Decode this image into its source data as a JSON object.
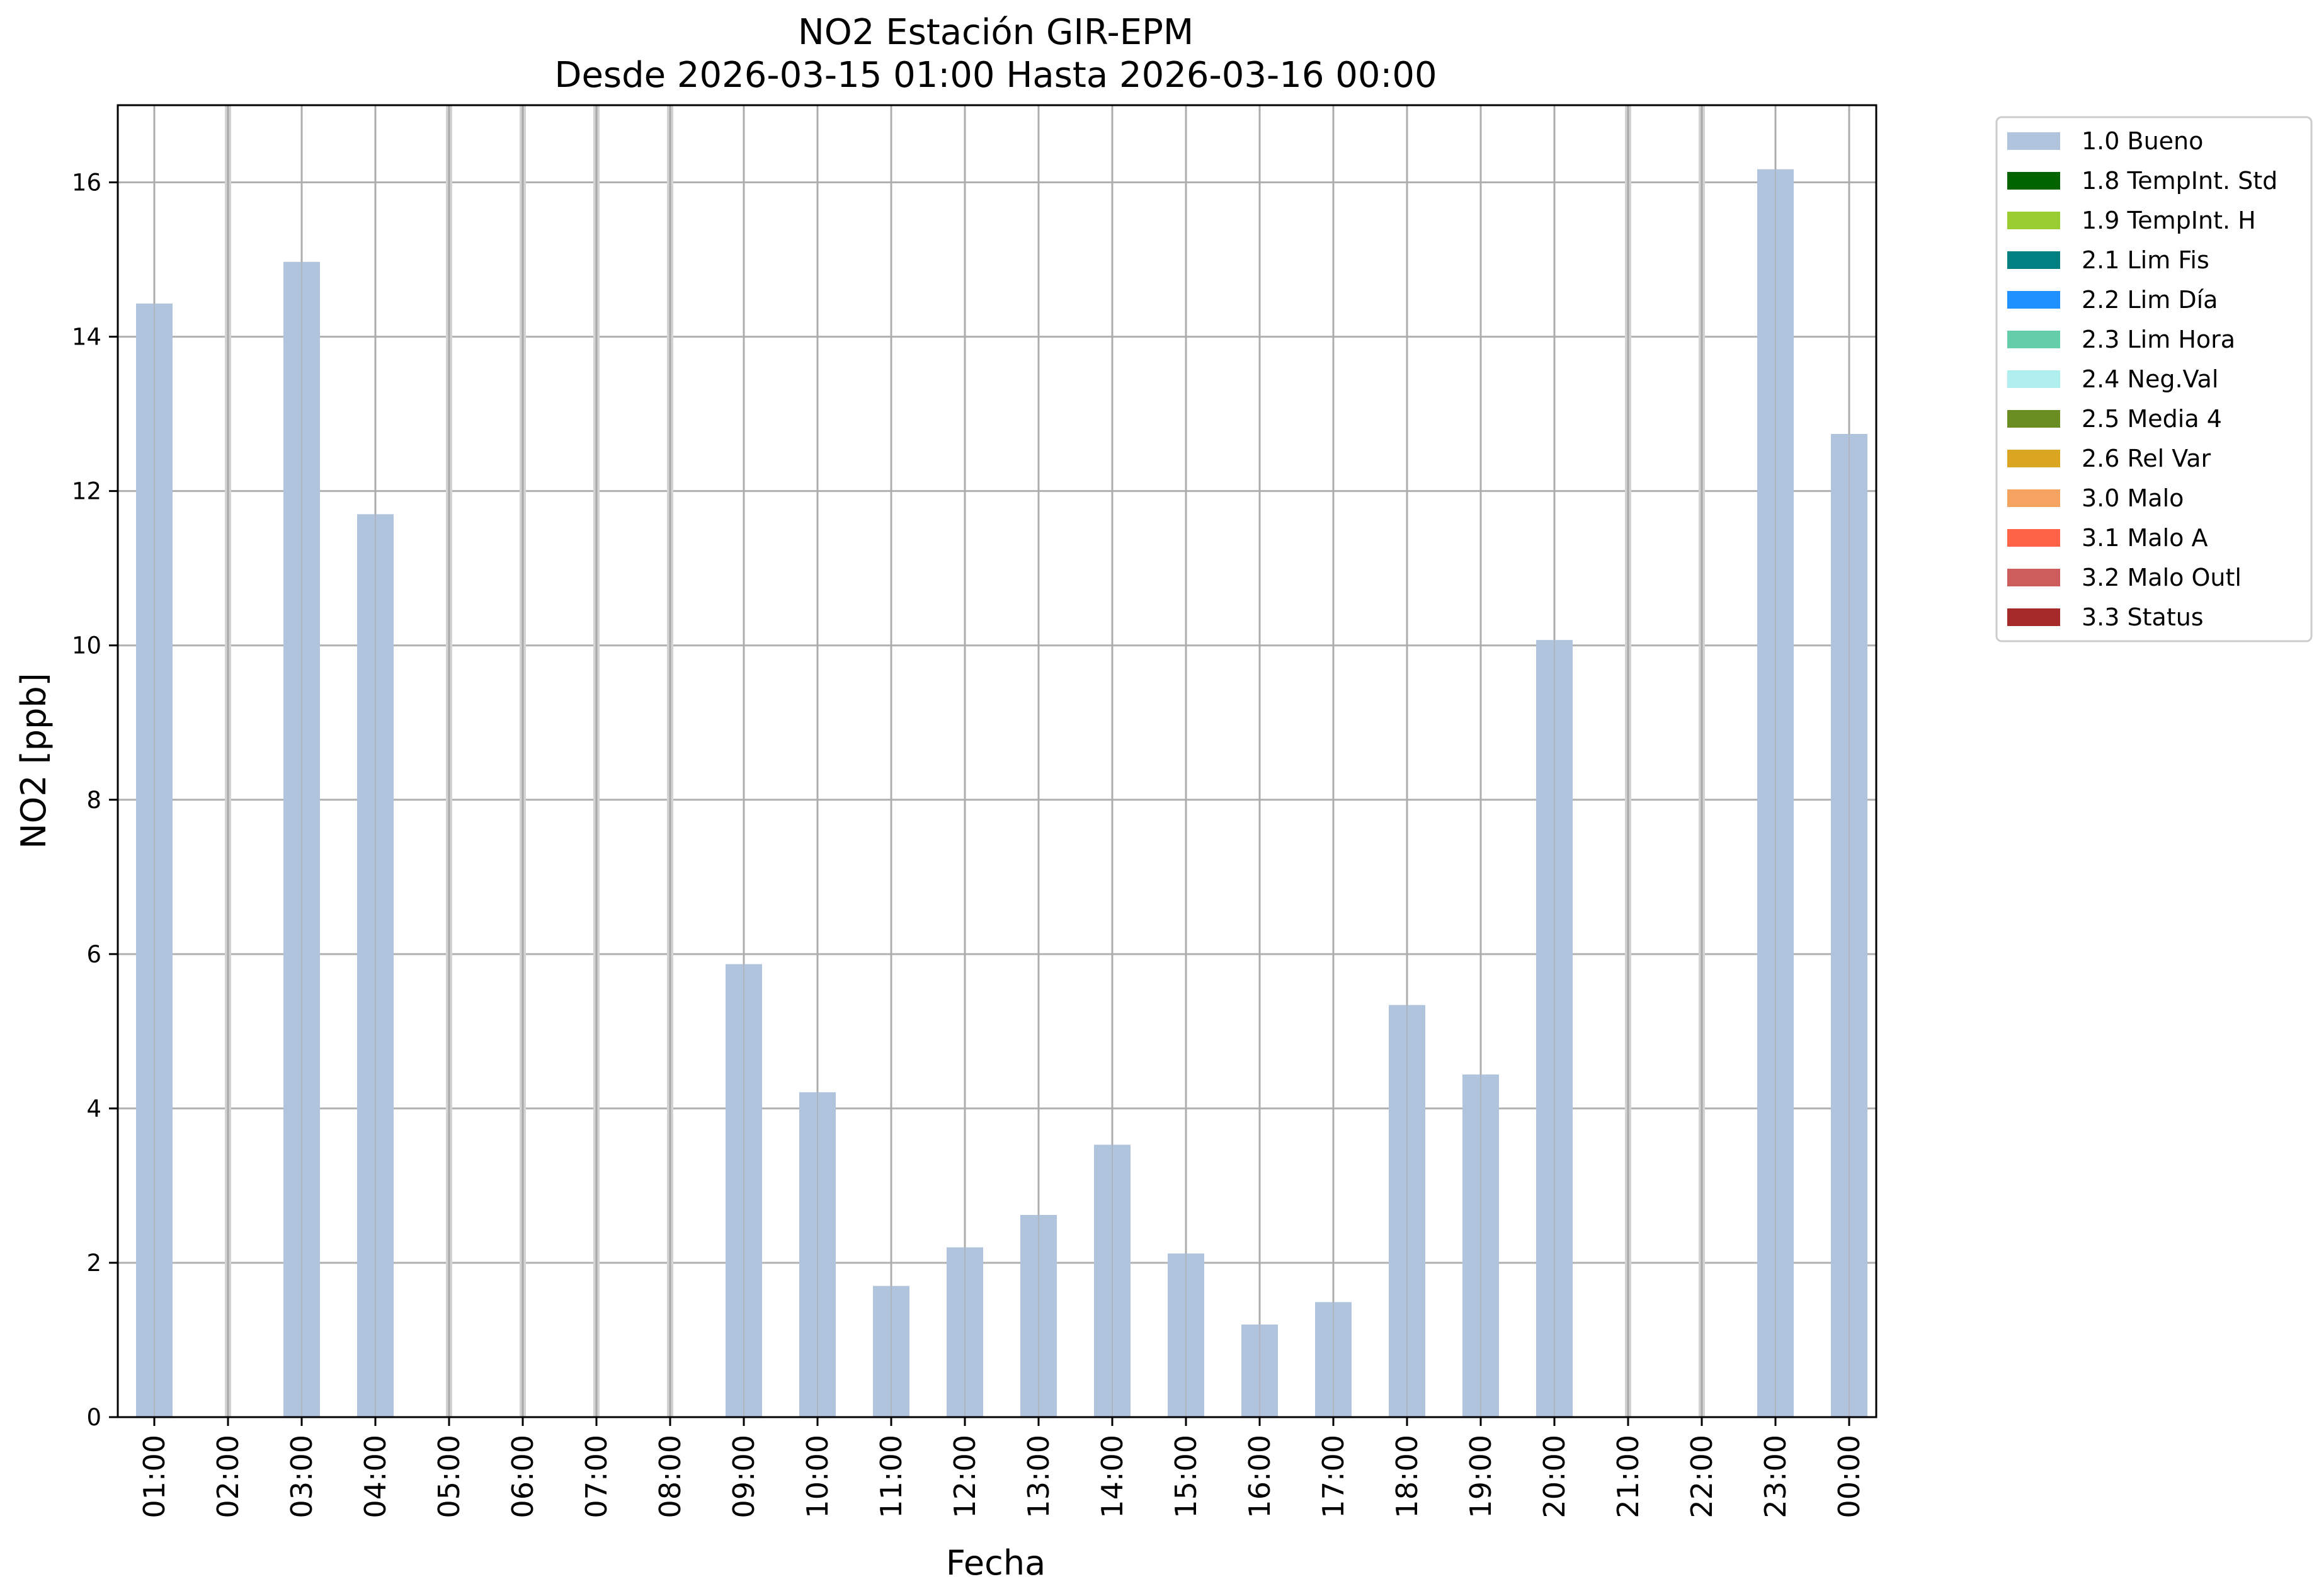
{
  "chart_data": {
    "type": "bar",
    "title": "NO2 Estación GIR-EPM",
    "subtitle": "Desde 2026-03-15 01:00 Hasta 2026-03-16 00:00",
    "xlabel": "Fecha",
    "ylabel": "NO2 [ppb]",
    "ylim": [
      0,
      17
    ],
    "yticks": [
      0,
      2,
      4,
      6,
      8,
      10,
      12,
      14,
      16
    ],
    "grid": true,
    "legend_position": "outside-right",
    "categories": [
      "01:00",
      "02:00",
      "03:00",
      "04:00",
      "05:00",
      "06:00",
      "07:00",
      "08:00",
      "09:00",
      "10:00",
      "11:00",
      "12:00",
      "13:00",
      "14:00",
      "15:00",
      "16:00",
      "17:00",
      "18:00",
      "19:00",
      "20:00",
      "21:00",
      "22:00",
      "23:00",
      "00:00"
    ],
    "series": [
      {
        "name": "1.0 Bueno",
        "color": "#b0c4de",
        "values": [
          14.43,
          null,
          14.97,
          11.7,
          null,
          null,
          null,
          null,
          5.87,
          4.21,
          1.7,
          2.2,
          2.62,
          3.53,
          2.12,
          1.2,
          1.49,
          5.34,
          4.44,
          10.07,
          null,
          null,
          16.17,
          12.74
        ]
      }
    ],
    "missing_color": "#d3d3d3",
    "legend": [
      {
        "label": "1.0 Bueno",
        "color": "#b0c4de"
      },
      {
        "label": "1.8 TempInt. Std",
        "color": "#006400"
      },
      {
        "label": "1.9 TempInt. H",
        "color": "#9acd32"
      },
      {
        "label": "2.1 Lim Fis",
        "color": "#008080"
      },
      {
        "label": "2.2 Lim Día",
        "color": "#1e90ff"
      },
      {
        "label": "2.3 Lim Hora",
        "color": "#66cdaa"
      },
      {
        "label": "2.4 Neg.Val",
        "color": "#afeeee"
      },
      {
        "label": "2.5 Media 4",
        "color": "#6b8e23"
      },
      {
        "label": "2.6 Rel Var",
        "color": "#daa520"
      },
      {
        "label": "3.0 Malo",
        "color": "#f4a460"
      },
      {
        "label": "3.1 Malo A",
        "color": "#ff6347"
      },
      {
        "label": "3.2 Malo Outl",
        "color": "#cd5c5c"
      },
      {
        "label": "3.3 Status",
        "color": "#a52a2a"
      }
    ]
  }
}
